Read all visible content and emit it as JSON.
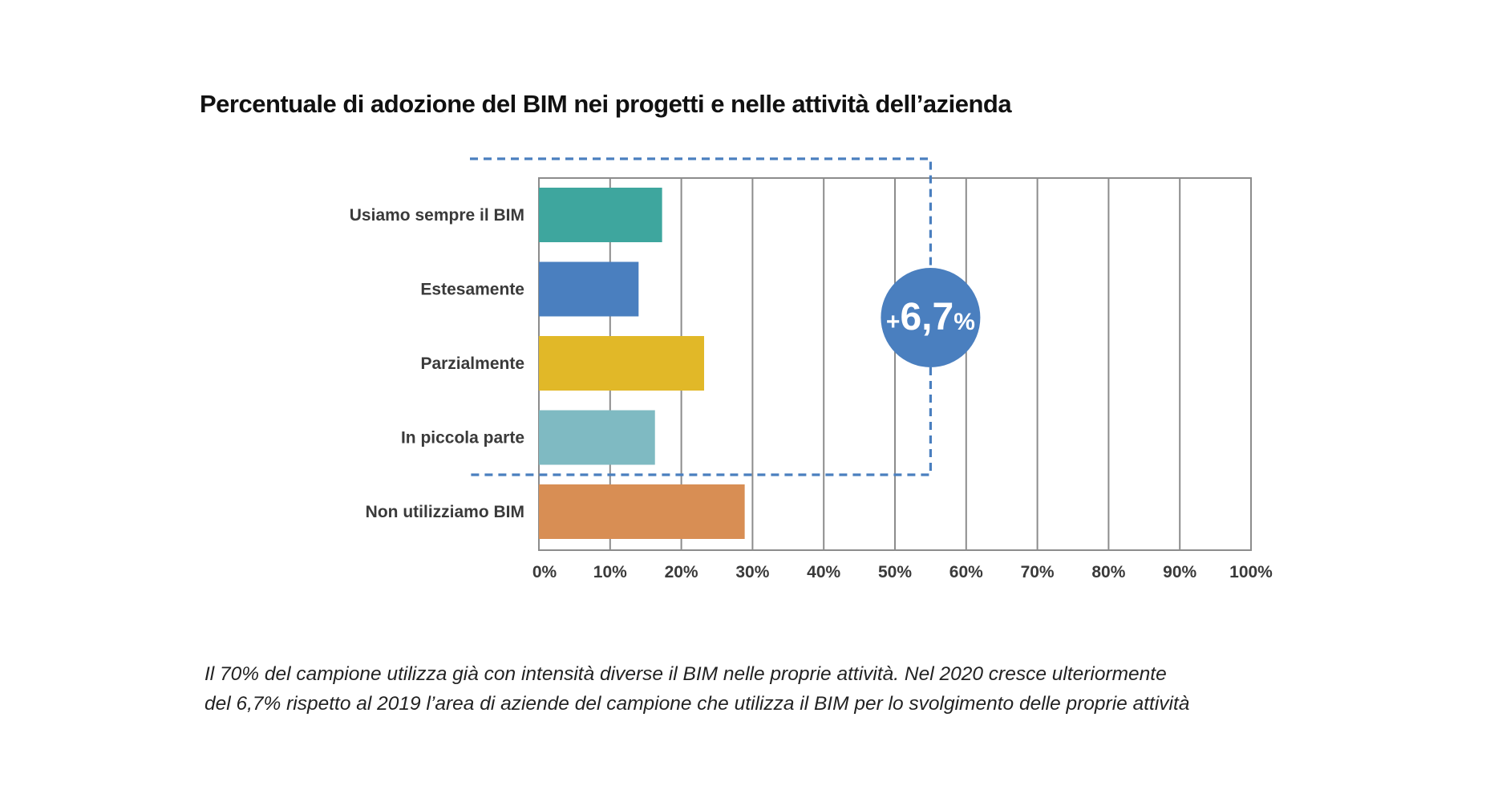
{
  "chart_data": {
    "type": "bar",
    "orientation": "horizontal",
    "title": "Percentuale di adozione del BIM nei progetti e nelle attività dell’azienda",
    "categories": [
      "Usiamo sempre il BIM",
      "Estesamente",
      "Parzialmente",
      "In piccola parte",
      "Non utilizziamo BIM"
    ],
    "values": [
      17.3,
      14,
      23.2,
      16.3,
      28.9
    ],
    "colors": [
      "#3ea69e",
      "#4a7fbf",
      "#e1b828",
      "#7fbac2",
      "#d88e54"
    ],
    "xlim": [
      0,
      100
    ],
    "xticks": [
      "0%",
      "10%",
      "20%",
      "30%",
      "40%",
      "50%",
      "60%",
      "70%",
      "80%",
      "90%",
      "100%"
    ],
    "xlabel": "",
    "ylabel": "",
    "grid": "vertical",
    "annotation": {
      "prefix": "+",
      "value": "6,7",
      "suffix": "%",
      "color": "#4a7fbf",
      "bracket_at_value": 55
    }
  },
  "caption": {
    "line1": "Il 70% del campione utilizza già con intensità diverse il BIM nelle proprie attività. Nel 2020 cresce ulteriormente",
    "line2": "del 6,7% rispetto al 2019 l’area di aziende del campione che utilizza il BIM per lo svolgimento delle proprie attività"
  }
}
